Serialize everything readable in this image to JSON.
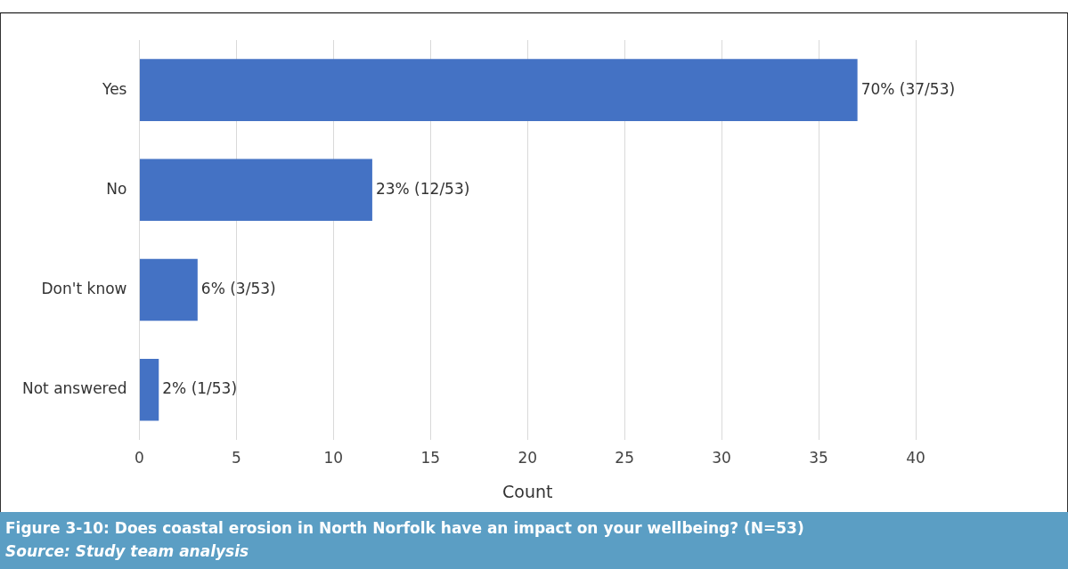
{
  "chart_data": {
    "type": "bar",
    "orientation": "horizontal",
    "title": "Figure 3-10: Does coastal erosion in North Norfolk have an impact on your wellbeing? (N=53)",
    "annotations": [
      "Source:  Study team analysis"
    ],
    "xlabel": "Count",
    "categories": [
      "Yes",
      "No",
      "Don't know",
      "Not answered"
    ],
    "values": [
      37,
      12,
      3,
      1
    ],
    "value_labels": [
      "70% (37/53)",
      "23% (12/53)",
      "6% (3/53)",
      "2% (1/53)"
    ],
    "color": "#4472c4",
    "xlim": [
      0,
      40
    ],
    "xticks": [
      0,
      5,
      10,
      15,
      20,
      25,
      30,
      35,
      40
    ],
    "grid": "x"
  }
}
